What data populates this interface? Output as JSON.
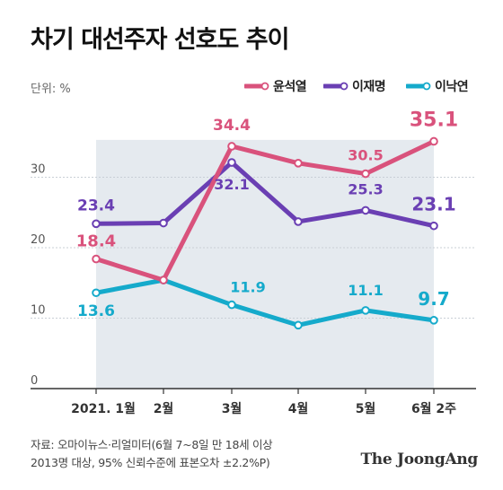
{
  "title": "차기 대선주자 선호도 추이",
  "unit_label": "단위: %",
  "source_line1": "자료: 오마이뉴스·리얼미터(6월 7~8일 만 18세 이상",
  "source_line2": "2013명 대상, 95% 신뢰수준에 표본오차 ±2.2%P)",
  "brand": "The JoongAng",
  "chart_data": {
    "type": "line",
    "categories": [
      "2021. 1월",
      "2월",
      "3월",
      "4월",
      "5월",
      "6월 2주"
    ],
    "ylim": [
      0,
      37
    ],
    "yticks": [
      0,
      10,
      20,
      30
    ],
    "grid": true,
    "legend_position": "top-right",
    "series": [
      {
        "name": "윤석열",
        "color": "#d9527c",
        "values": [
          18.4,
          15.4,
          34.4,
          32.0,
          30.5,
          35.1
        ],
        "labels": [
          "18.4",
          "",
          "34.4",
          "",
          "30.5",
          "35.1"
        ]
      },
      {
        "name": "이재명",
        "color": "#6a3fb3",
        "values": [
          23.4,
          23.5,
          32.1,
          23.7,
          25.3,
          23.1
        ],
        "labels": [
          "23.4",
          "",
          "32.1",
          "",
          "25.3",
          "23.1"
        ]
      },
      {
        "name": "이낙연",
        "color": "#15aacb",
        "values": [
          13.6,
          15.4,
          11.9,
          9.0,
          11.1,
          9.7
        ],
        "labels": [
          "13.6",
          "",
          "11.9",
          "",
          "11.1",
          "9.7"
        ]
      }
    ]
  }
}
